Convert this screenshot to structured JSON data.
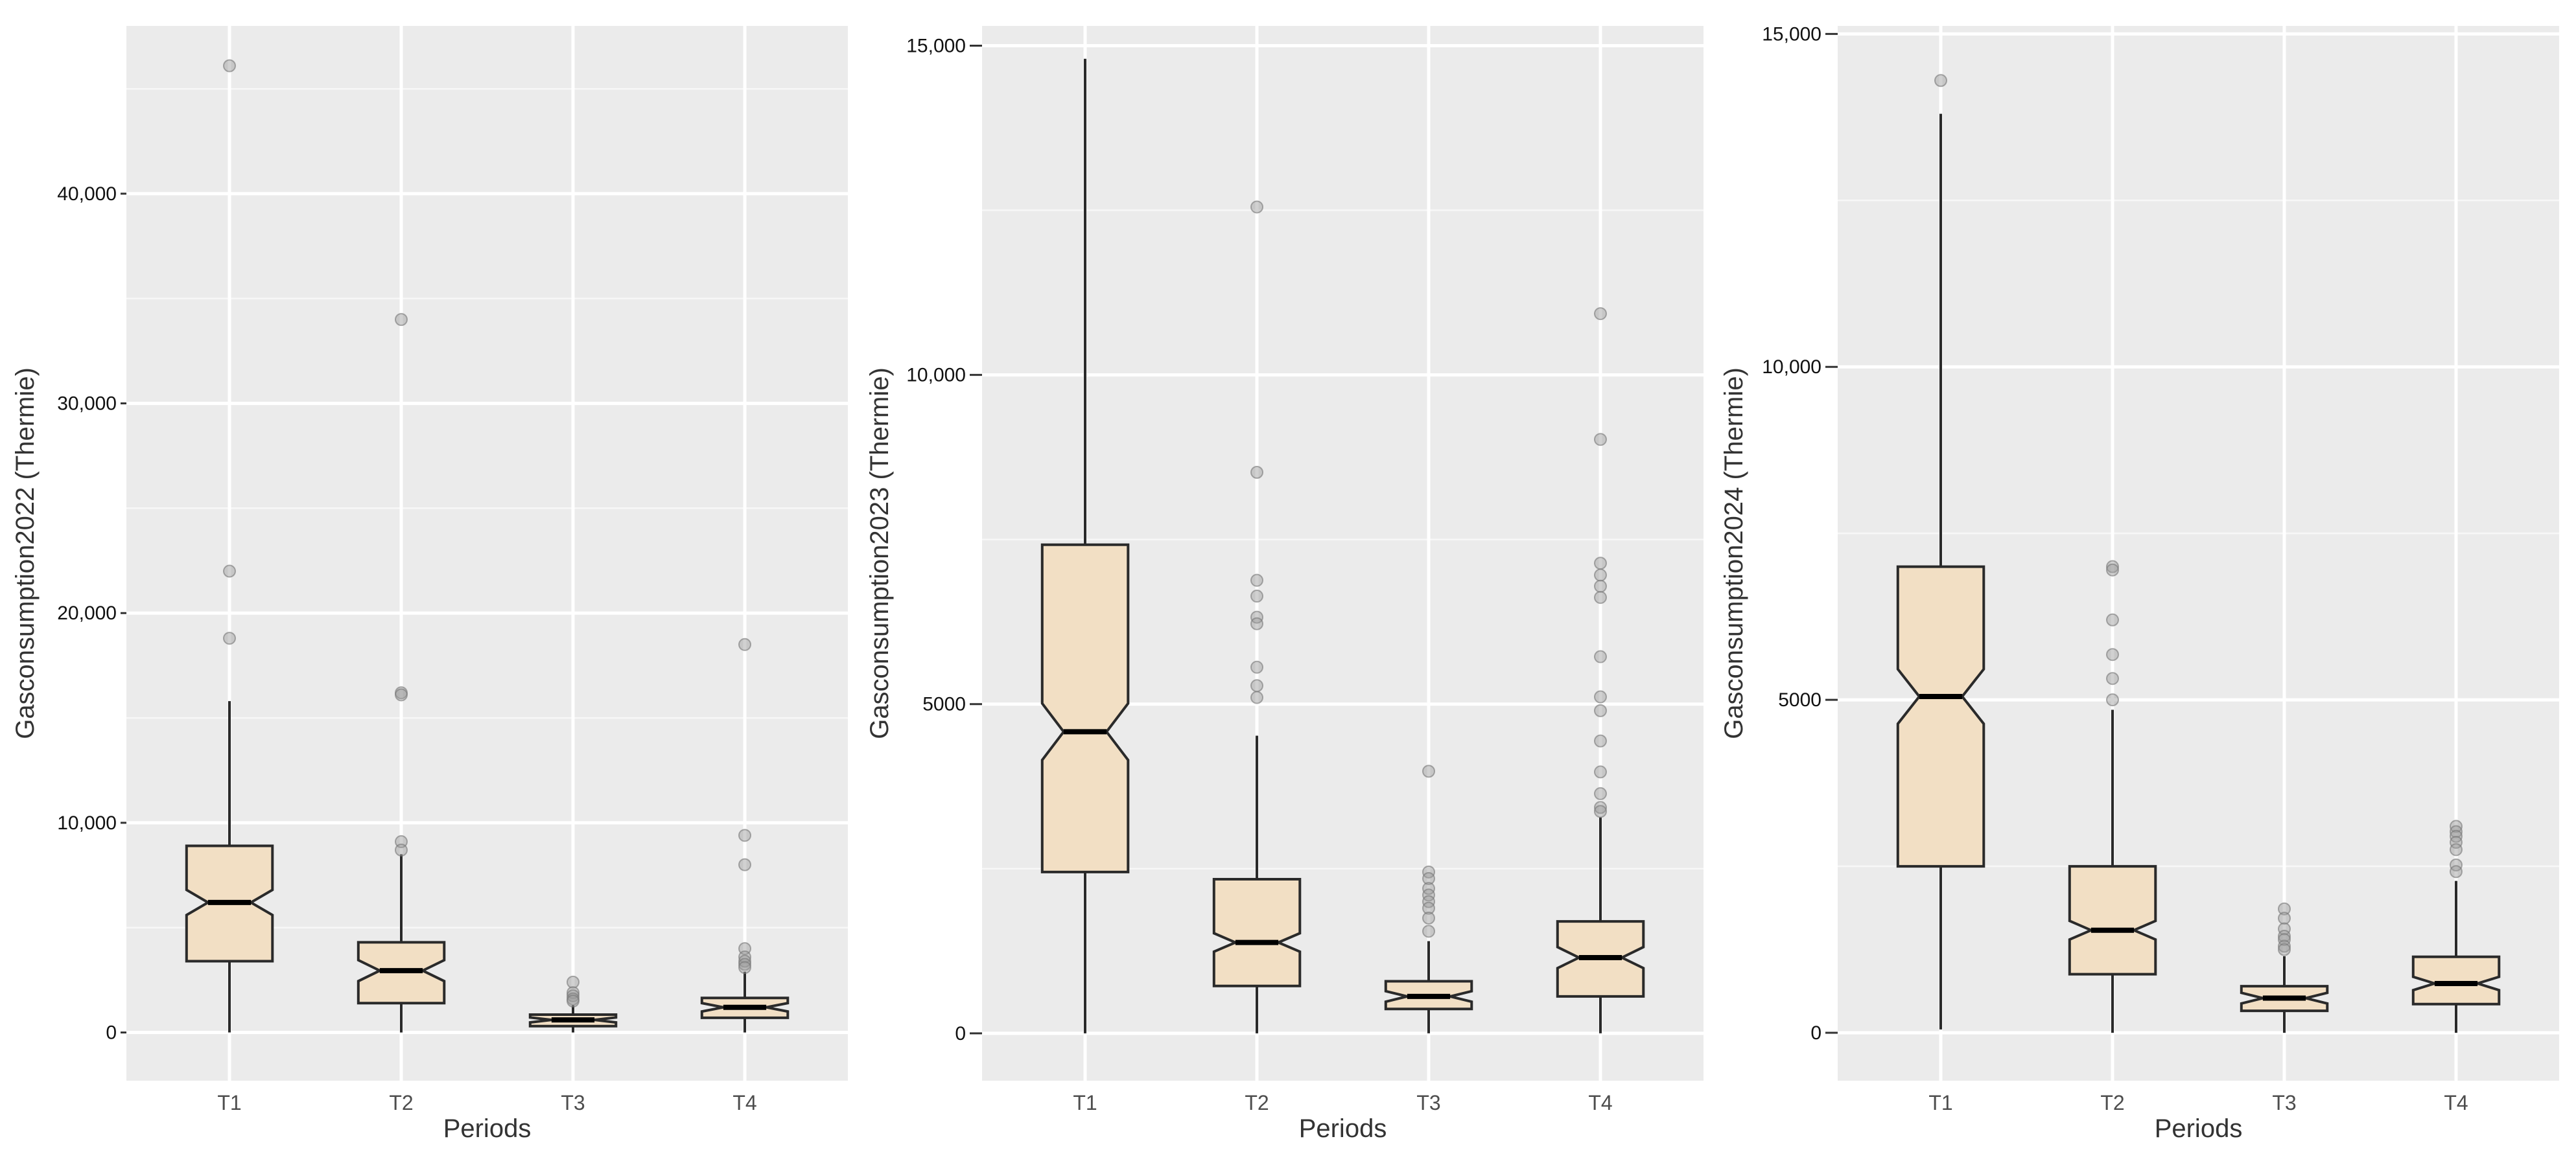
{
  "chart_data": [
    {
      "type": "boxplot",
      "variant": "notched",
      "xlabel": "Periods",
      "ylabel": "Gasconsumption2022 (Thermie)",
      "ylim": [
        -2300,
        48000
      ],
      "yticks": [
        0,
        10000,
        20000,
        30000,
        40000
      ],
      "ytick_labels": [
        "0",
        "10,000",
        "20,000",
        "30,000",
        "40,000"
      ],
      "categories": [
        "T1",
        "T2",
        "T3",
        "T4"
      ],
      "boxes": [
        {
          "q1": 3400,
          "median": 6200,
          "q3": 8900,
          "whisker_low": 0,
          "whisker_high": 15800,
          "notch_low": 5600,
          "notch_high": 6800,
          "outliers": [
            46100,
            22000,
            18800
          ]
        },
        {
          "q1": 1400,
          "median": 2950,
          "q3": 4300,
          "whisker_low": 0,
          "whisker_high": 8500,
          "notch_low": 2450,
          "notch_high": 3450,
          "outliers": [
            34000,
            16200,
            16100,
            9100,
            8700
          ]
        },
        {
          "q1": 300,
          "median": 600,
          "q3": 850,
          "whisker_low": 0,
          "whisker_high": 1300,
          "notch_low": 480,
          "notch_high": 720,
          "outliers": [
            2400,
            1900,
            1750,
            1600,
            1500
          ]
        },
        {
          "q1": 700,
          "median": 1200,
          "q3": 1650,
          "whisker_low": 0,
          "whisker_high": 2900,
          "notch_low": 1000,
          "notch_high": 1400,
          "outliers": [
            18500,
            9400,
            8000,
            4000,
            3600,
            3400,
            3250,
            3100
          ]
        }
      ]
    },
    {
      "type": "boxplot",
      "variant": "notched",
      "xlabel": "Periods",
      "ylabel": "Gasconsumption2023 (Thermie)",
      "ylim": [
        -720,
        15300
      ],
      "yticks": [
        0,
        5000,
        10000,
        15000
      ],
      "ytick_labels": [
        "0",
        "5000",
        "10,000",
        "15,000"
      ],
      "categories": [
        "T1",
        "T2",
        "T3",
        "T4"
      ],
      "boxes": [
        {
          "q1": 2450,
          "median": 4580,
          "q3": 7420,
          "whisker_low": 0,
          "whisker_high": 14800,
          "notch_low": 4150,
          "notch_high": 5010,
          "outliers": []
        },
        {
          "q1": 720,
          "median": 1380,
          "q3": 2340,
          "whisker_low": 0,
          "whisker_high": 4520,
          "notch_low": 1240,
          "notch_high": 1520,
          "outliers": [
            12550,
            8520,
            6880,
            6640,
            6320,
            6220,
            5560,
            5280,
            5100
          ]
        },
        {
          "q1": 370,
          "median": 560,
          "q3": 790,
          "whisker_low": 0,
          "whisker_high": 1400,
          "notch_low": 480,
          "notch_high": 640,
          "outliers": [
            3980,
            2450,
            2350,
            2200,
            2100,
            2000,
            1900,
            1750,
            1550
          ]
        },
        {
          "q1": 560,
          "median": 1150,
          "q3": 1700,
          "whisker_low": 0,
          "whisker_high": 3280,
          "notch_low": 990,
          "notch_high": 1310,
          "outliers": [
            10930,
            9020,
            7140,
            6960,
            6790,
            6620,
            5720,
            5110,
            4900,
            4440,
            3970,
            3640,
            3430,
            3370
          ]
        }
      ]
    },
    {
      "type": "boxplot",
      "variant": "notched",
      "xlabel": "Periods",
      "ylabel": "Gasconsumption2024 (Thermie)",
      "ylim": [
        -720,
        15120
      ],
      "yticks": [
        0,
        5000,
        10000,
        15000
      ],
      "ytick_labels": [
        "0",
        "5000",
        "10,000",
        "15,000"
      ],
      "categories": [
        "T1",
        "T2",
        "T3",
        "T4"
      ],
      "boxes": [
        {
          "q1": 2500,
          "median": 5050,
          "q3": 7000,
          "whisker_low": 50,
          "whisker_high": 13800,
          "notch_low": 4640,
          "notch_high": 5460,
          "outliers": [
            14300
          ]
        },
        {
          "q1": 880,
          "median": 1540,
          "q3": 2500,
          "whisker_low": 0,
          "whisker_high": 4850,
          "notch_low": 1400,
          "notch_high": 1680,
          "outliers": [
            7000,
            6950,
            6200,
            5680,
            5320,
            5000
          ]
        },
        {
          "q1": 330,
          "median": 520,
          "q3": 700,
          "whisker_low": 0,
          "whisker_high": 1150,
          "notch_low": 440,
          "notch_high": 600,
          "outliers": [
            1860,
            1720,
            1560,
            1450,
            1400,
            1300,
            1250
          ]
        },
        {
          "q1": 430,
          "median": 740,
          "q3": 1140,
          "whisker_low": 0,
          "whisker_high": 2280,
          "notch_low": 640,
          "notch_high": 840,
          "outliers": [
            3100,
            3020,
            2950,
            2860,
            2750,
            2520,
            2420
          ]
        }
      ]
    }
  ]
}
